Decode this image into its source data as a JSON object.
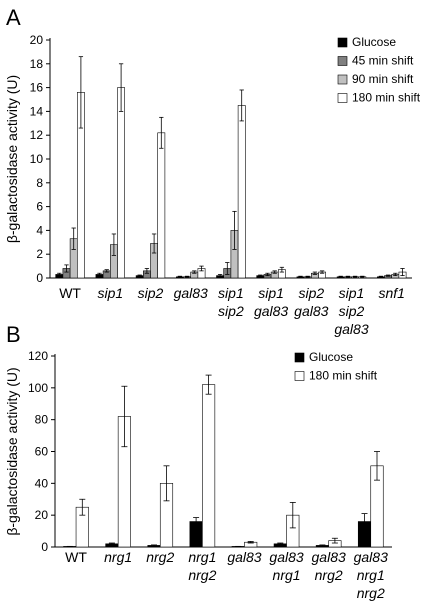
{
  "chart_data": [
    {
      "panel": "A",
      "type": "bar",
      "ylabel": "β-galactosidase activity (U)",
      "ylim": [
        0,
        20
      ],
      "yticks": [
        0,
        2,
        4,
        6,
        8,
        10,
        12,
        14,
        16,
        18,
        20
      ],
      "legend_position": "top-right",
      "categories": [
        {
          "lines": [
            "WT"
          ],
          "italic": false
        },
        {
          "lines": [
            "sip1"
          ],
          "italic": true
        },
        {
          "lines": [
            "sip2"
          ],
          "italic": true
        },
        {
          "lines": [
            "gal83"
          ],
          "italic": true
        },
        {
          "lines": [
            "sip1",
            "sip2"
          ],
          "italic": true
        },
        {
          "lines": [
            "sip1",
            "gal83"
          ],
          "italic": true
        },
        {
          "lines": [
            "sip2",
            "gal83"
          ],
          "italic": true
        },
        {
          "lines": [
            "sip1",
            "sip2",
            "gal83"
          ],
          "italic": true
        },
        {
          "lines": [
            "snf1"
          ],
          "italic": true
        }
      ],
      "series": [
        {
          "name": "Glucose",
          "color": "#000000",
          "values": [
            0.3,
            0.3,
            0.2,
            0.1,
            0.2,
            0.2,
            0.1,
            0.1,
            0.1
          ],
          "errors": [
            0.1,
            0.1,
            0.05,
            0.05,
            0.1,
            0.05,
            0.05,
            0.05,
            0.05
          ]
        },
        {
          "name": "45 min shift",
          "color": "#808080",
          "values": [
            0.8,
            0.6,
            0.6,
            0.1,
            0.8,
            0.3,
            0.1,
            0.1,
            0.2
          ],
          "errors": [
            0.3,
            0.1,
            0.2,
            0.05,
            0.5,
            0.1,
            0.05,
            0.05,
            0.05
          ]
        },
        {
          "name": "90 min shift",
          "color": "#c0c0c0",
          "values": [
            3.3,
            2.8,
            2.9,
            0.5,
            4.0,
            0.5,
            0.4,
            0.1,
            0.3
          ],
          "errors": [
            0.9,
            0.9,
            0.8,
            0.1,
            1.6,
            0.1,
            0.1,
            0.05,
            0.1
          ]
        },
        {
          "name": "180 min shift",
          "color": "#ffffff",
          "values": [
            15.6,
            16.0,
            12.2,
            0.8,
            14.5,
            0.7,
            0.5,
            0.1,
            0.5
          ],
          "errors": [
            3.0,
            2.0,
            1.3,
            0.2,
            1.3,
            0.2,
            0.1,
            0.05,
            0.3
          ]
        }
      ]
    },
    {
      "panel": "B",
      "type": "bar",
      "ylabel": "β-galactosidase activity (U)",
      "ylim": [
        0,
        120
      ],
      "yticks": [
        0,
        20,
        40,
        60,
        80,
        100,
        120
      ],
      "legend_position": "top-right",
      "categories": [
        {
          "lines": [
            "WT"
          ],
          "italic": false
        },
        {
          "lines": [
            "nrg1"
          ],
          "italic": true
        },
        {
          "lines": [
            "nrg2"
          ],
          "italic": true
        },
        {
          "lines": [
            "nrg1",
            "nrg2"
          ],
          "italic": true
        },
        {
          "lines": [
            "gal83"
          ],
          "italic": true
        },
        {
          "lines": [
            "gal83",
            "nrg1"
          ],
          "italic": true
        },
        {
          "lines": [
            "gal83",
            "nrg2"
          ],
          "italic": true
        },
        {
          "lines": [
            "gal83",
            "nrg1",
            "nrg2"
          ],
          "italic": true
        }
      ],
      "series": [
        {
          "name": "Glucose",
          "color": "#000000",
          "values": [
            0.3,
            2,
            1,
            16,
            0.3,
            2,
            1,
            16
          ],
          "errors": [
            0.1,
            0.5,
            0.3,
            2.5,
            0.1,
            0.5,
            0.3,
            5
          ]
        },
        {
          "name": "180 min shift",
          "color": "#ffffff",
          "values": [
            25,
            82,
            40,
            102,
            3,
            20,
            4,
            51
          ],
          "errors": [
            5,
            19,
            11,
            6,
            0.5,
            8,
            1.5,
            9
          ]
        }
      ]
    }
  ]
}
